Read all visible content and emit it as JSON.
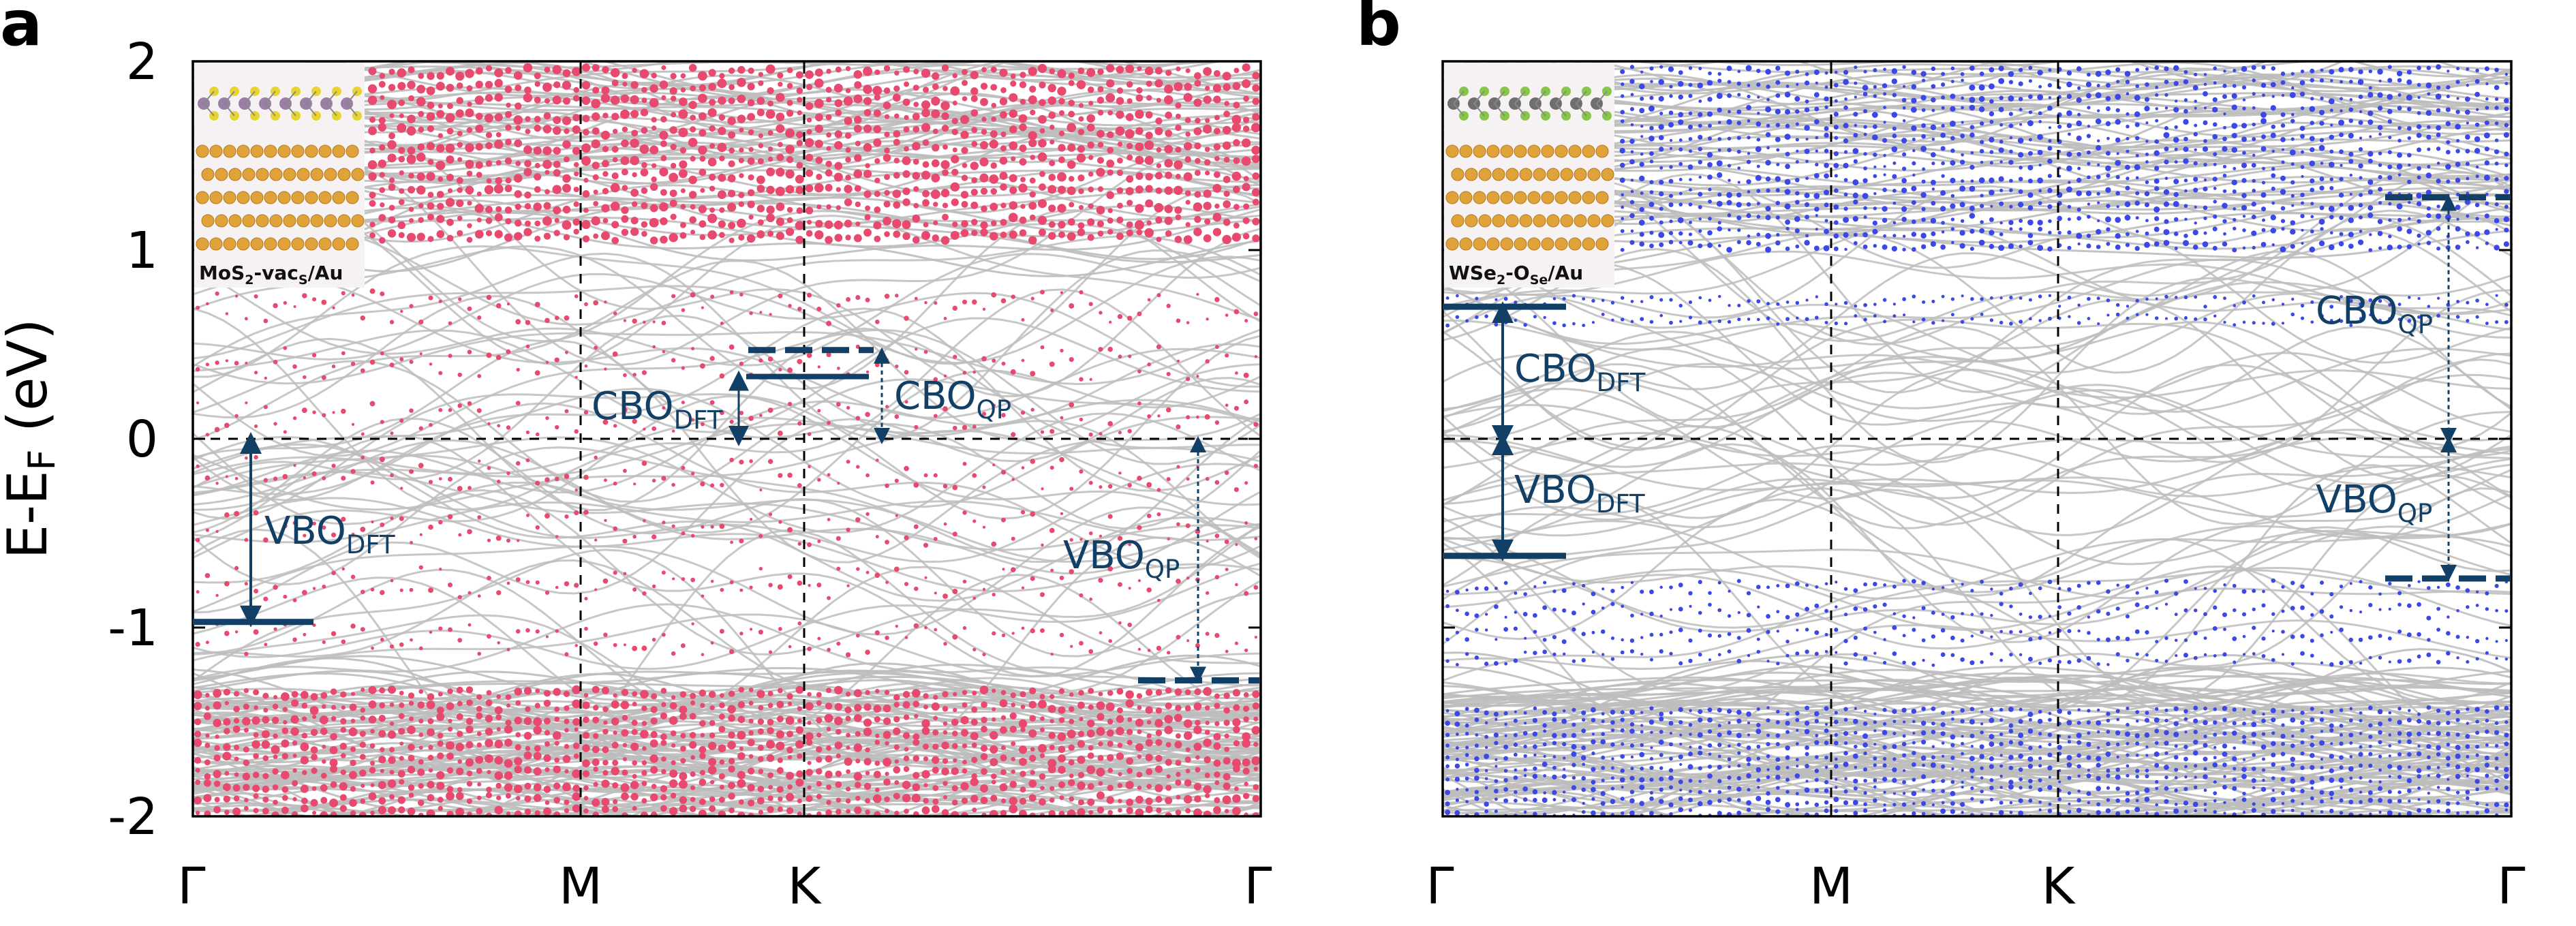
{
  "chart_data": [
    {
      "type": "scatter",
      "panel_label": "a",
      "ylabel_main": "E-E",
      "ylabel_sub": "F",
      "ylabel_unit": " (eV)",
      "ylim": [
        -2,
        2
      ],
      "yticks": [
        "2",
        "1",
        "0",
        "-1",
        "-2"
      ],
      "xticks": [
        "Γ",
        "M",
        "K",
        "Γ"
      ],
      "grid": false,
      "highlight_color": "#e84a6f",
      "band_color": "#bdbdbd",
      "annotation_color": "#123f66",
      "inset_caption": {
        "main": "MoS",
        "s1": "2",
        "mid": "-vac",
        "s2": "S",
        "tail": "/Au"
      },
      "levels": {
        "vbo_dft": -0.97,
        "cbo_dft": 0.33,
        "cbo_qp": 0.47,
        "vbo_qp": -1.28
      },
      "annotations": [
        {
          "main": "VBO",
          "sub": "DFT"
        },
        {
          "main": "CBO",
          "sub": "DFT"
        },
        {
          "main": "CBO",
          "sub": "QP"
        },
        {
          "main": "VBO",
          "sub": "QP"
        }
      ]
    },
    {
      "type": "scatter",
      "panel_label": "b",
      "ylim": [
        -2,
        2
      ],
      "xticks": [
        "Γ",
        "M",
        "K",
        "Γ"
      ],
      "grid": false,
      "highlight_color": "#3b47e6",
      "band_color": "#bdbdbd",
      "annotation_color": "#123f66",
      "inset_caption": {
        "main": "WSe",
        "s1": "2",
        "mid": "-O",
        "s2": "Se",
        "tail": "/Au"
      },
      "levels": {
        "cbo_dft": 0.7,
        "vbo_dft": -0.62,
        "cbo_qp": 1.28,
        "vbo_qp": -0.74
      },
      "annotations": [
        {
          "main": "CBO",
          "sub": "DFT"
        },
        {
          "main": "VBO",
          "sub": "DFT"
        },
        {
          "main": "CBO",
          "sub": "QP"
        },
        {
          "main": "VBO",
          "sub": "QP"
        }
      ]
    }
  ]
}
